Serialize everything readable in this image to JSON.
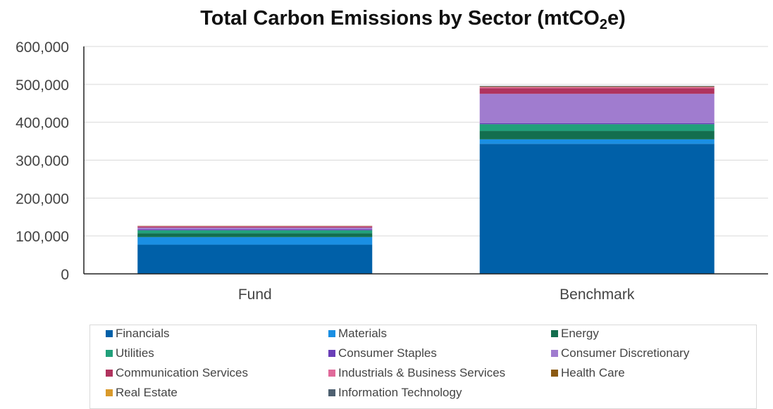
{
  "chart_data": {
    "type": "bar",
    "stacked": true,
    "title_main": "Total Carbon Emissions by Sector (mtCO",
    "title_sub": "2",
    "title_end": "e)",
    "categories": [
      "Fund",
      "Benchmark"
    ],
    "ylim": [
      0,
      600000
    ],
    "yticks": [
      0,
      100000,
      200000,
      300000,
      400000,
      500000,
      600000
    ],
    "ytick_labels": [
      "0",
      "100,000",
      "200,000",
      "300,000",
      "400,000",
      "500,000",
      "600,000"
    ],
    "grid": true,
    "legend_position": "bottom",
    "series": [
      {
        "name": "Financials",
        "color": "#0060a8",
        "values": [
          77000,
          343000
        ]
      },
      {
        "name": "Materials",
        "color": "#1a8fe3",
        "values": [
          20000,
          12000
        ]
      },
      {
        "name": "Energy",
        "color": "#136e4e",
        "values": [
          10000,
          22000
        ]
      },
      {
        "name": "Utilities",
        "color": "#21a07a",
        "values": [
          8000,
          18000
        ]
      },
      {
        "name": "Consumer Staples",
        "color": "#6a3fb8",
        "values": [
          2000,
          3000
        ]
      },
      {
        "name": "Consumer Discretionary",
        "color": "#a07ccf",
        "values": [
          5000,
          77000
        ]
      },
      {
        "name": "Communication Services",
        "color": "#b0335e",
        "values": [
          3000,
          15000
        ]
      },
      {
        "name": "Industrials & Business Services",
        "color": "#e06a9a",
        "values": [
          1000,
          3000
        ]
      },
      {
        "name": "Health Care",
        "color": "#8b5a12",
        "values": [
          500,
          1000
        ]
      },
      {
        "name": "Real Estate",
        "color": "#d99a2b",
        "values": [
          300,
          500
        ]
      },
      {
        "name": "Information Technology",
        "color": "#4e6070",
        "values": [
          200,
          1500
        ]
      }
    ]
  }
}
